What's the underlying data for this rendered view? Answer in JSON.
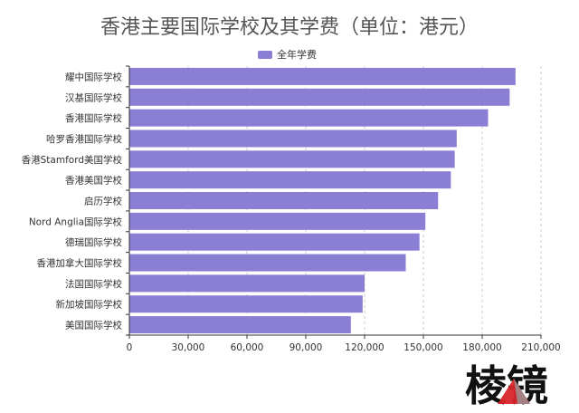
{
  "chart_data": {
    "type": "bar",
    "orientation": "horizontal",
    "title": "香港主要国际学校及其学费（单位：港元）",
    "series": [
      {
        "name": "全年学费",
        "color": "#8a7fd4",
        "values": [
          197000,
          194000,
          183000,
          167000,
          166000,
          164000,
          157500,
          151000,
          148000,
          141000,
          120000,
          119000,
          113000
        ]
      }
    ],
    "categories": [
      "耀中国际学校",
      "汉基国际学校",
      "香港国际学校",
      "哈罗香港国际学校",
      "香港Stamford美国学校",
      "香港美国学校",
      "启历学校",
      "Nord Anglia国际学校",
      "德瑞国际学校",
      "香港加拿大国际学校",
      "法国国际学校",
      "新加坡国际学校",
      "美国国际学校"
    ],
    "xlim": [
      0,
      210000
    ],
    "xticks": [
      0,
      30000,
      60000,
      90000,
      120000,
      150000,
      180000,
      210000
    ],
    "xtick_labels": [
      "0",
      "30,000",
      "60,000",
      "90,000",
      "120,000",
      "150,000",
      "180,000",
      "210,000"
    ],
    "grid": true,
    "legend_position": "top-center"
  },
  "watermark": {
    "text": "棱镜",
    "accent_color": "#d7262b"
  }
}
